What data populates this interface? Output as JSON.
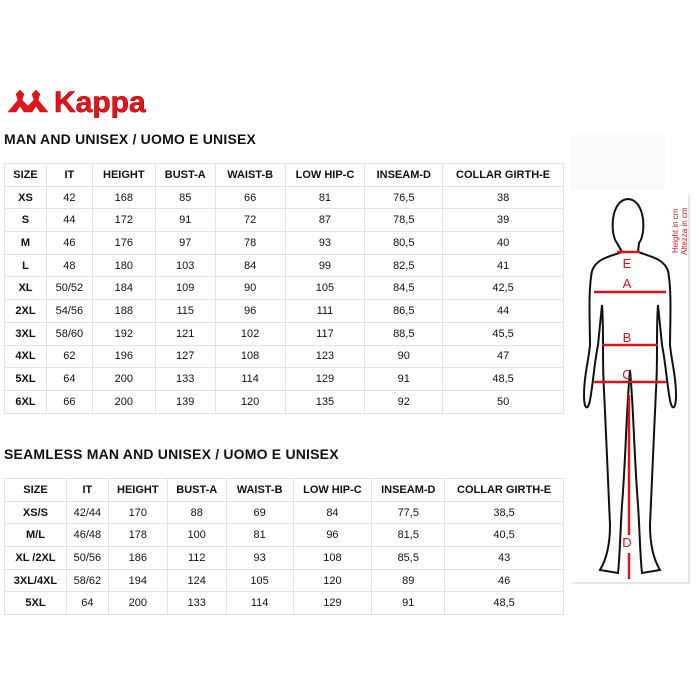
{
  "brand": {
    "logo_text": "Kappa",
    "brand_color": "#e3151b"
  },
  "table1": {
    "title": "MAN AND UNISEX / UOMO E UNISEX",
    "headers": [
      "SIZE",
      "IT",
      "HEIGHT",
      "BUST-A",
      "WAIST-B",
      "LOW HIP-C",
      "INSEAM-D",
      "COLLAR GIRTH-E"
    ],
    "rows": [
      [
        "XS",
        "42",
        "168",
        "85",
        "66",
        "81",
        "76,5",
        "38"
      ],
      [
        "S",
        "44",
        "172",
        "91",
        "72",
        "87",
        "78,5",
        "39"
      ],
      [
        "M",
        "46",
        "176",
        "97",
        "78",
        "93",
        "80,5",
        "40"
      ],
      [
        "L",
        "48",
        "180",
        "103",
        "84",
        "99",
        "82,5",
        "41"
      ],
      [
        "XL",
        "50/52",
        "184",
        "109",
        "90",
        "105",
        "84,5",
        "42,5"
      ],
      [
        "2XL",
        "54/56",
        "188",
        "115",
        "96",
        "111",
        "86,5",
        "44"
      ],
      [
        "3XL",
        "58/60",
        "192",
        "121",
        "102",
        "117",
        "88,5",
        "45,5"
      ],
      [
        "4XL",
        "62",
        "196",
        "127",
        "108",
        "123",
        "90",
        "47"
      ],
      [
        "5XL",
        "64",
        "200",
        "133",
        "114",
        "129",
        "91",
        "48,5"
      ],
      [
        "6XL",
        "66",
        "200",
        "139",
        "120",
        "135",
        "92",
        "50"
      ]
    ]
  },
  "table2": {
    "title": "SEAMLESS MAN AND UNISEX / UOMO E UNISEX",
    "headers": [
      "SIZE",
      "IT",
      "HEIGHT",
      "BUST-A",
      "WAIST-B",
      "LOW HIP-C",
      "INSEAM-D",
      "COLLAR GIRTH-E"
    ],
    "rows": [
      [
        "XS/S",
        "42/44",
        "170",
        "88",
        "69",
        "84",
        "77,5",
        "38,5"
      ],
      [
        "M/L",
        "46/48",
        "178",
        "100",
        "81",
        "96",
        "81,5",
        "40,5"
      ],
      [
        "XL /2XL",
        "50/56",
        "186",
        "112",
        "93",
        "108",
        "85,5",
        "43"
      ],
      [
        "3XL/4XL",
        "58/62",
        "194",
        "124",
        "105",
        "120",
        "89",
        "46"
      ],
      [
        "5XL",
        "64",
        "200",
        "133",
        "114",
        "129",
        "91",
        "48,5"
      ]
    ]
  },
  "figure": {
    "labels": {
      "a": "A",
      "b": "B",
      "c": "C",
      "d": "D",
      "e": "E"
    },
    "height_label": "Height in cm",
    "height_label_it": "Altezza in cm",
    "accent": "#d9141b"
  }
}
